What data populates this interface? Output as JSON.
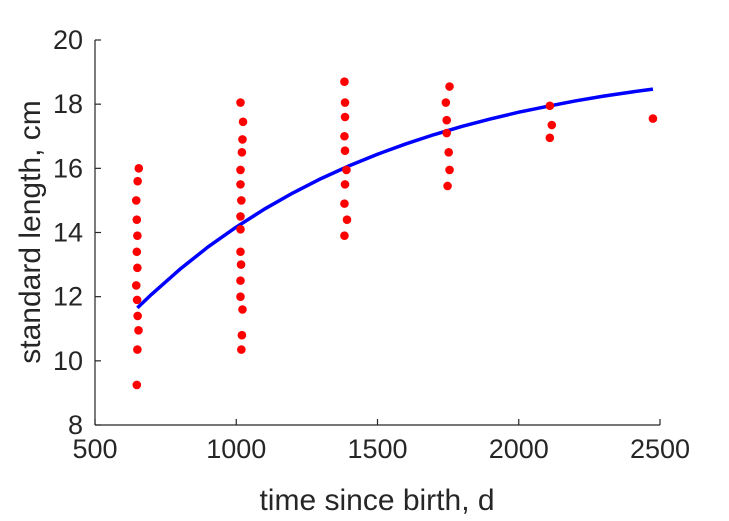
{
  "chart_data": {
    "type": "scatter",
    "title": "",
    "xlabel": "time since birth, d",
    "ylabel": "standard length, cm",
    "xlim": [
      500,
      2500
    ],
    "ylim": [
      8,
      20
    ],
    "xticks": [
      500,
      1000,
      1500,
      2000,
      2500
    ],
    "yticks": [
      8,
      10,
      12,
      14,
      16,
      18,
      20
    ],
    "grid": false,
    "legend": "none",
    "colors": {
      "points": "#ff0000",
      "curve": "#0000ff",
      "axes": "#262626"
    },
    "series": [
      {
        "kind": "scatter",
        "points": [
          [
            648,
            9.25
          ],
          [
            650,
            10.35
          ],
          [
            654,
            10.95
          ],
          [
            651,
            11.4
          ],
          [
            649,
            11.9
          ],
          [
            646,
            12.35
          ],
          [
            650,
            12.9
          ],
          [
            648,
            13.4
          ],
          [
            650,
            13.9
          ],
          [
            648,
            14.4
          ],
          [
            646,
            15.0
          ],
          [
            651,
            15.6
          ],
          [
            655,
            16.0
          ],
          [
            1018,
            10.35
          ],
          [
            1020,
            10.8
          ],
          [
            1022,
            11.6
          ],
          [
            1015,
            12.0
          ],
          [
            1015,
            12.5
          ],
          [
            1017,
            13.0
          ],
          [
            1015,
            13.4
          ],
          [
            1015,
            14.1
          ],
          [
            1015,
            14.5
          ],
          [
            1018,
            15.0
          ],
          [
            1015,
            15.5
          ],
          [
            1015,
            15.95
          ],
          [
            1020,
            16.5
          ],
          [
            1022,
            16.9
          ],
          [
            1024,
            17.45
          ],
          [
            1015,
            18.05
          ],
          [
            1383,
            13.9
          ],
          [
            1392,
            14.4
          ],
          [
            1383,
            14.9
          ],
          [
            1385,
            15.5
          ],
          [
            1390,
            15.95
          ],
          [
            1385,
            16.55
          ],
          [
            1383,
            17.0
          ],
          [
            1385,
            17.6
          ],
          [
            1385,
            18.05
          ],
          [
            1383,
            18.7
          ],
          [
            1748,
            15.45
          ],
          [
            1755,
            15.95
          ],
          [
            1752,
            16.5
          ],
          [
            1745,
            17.1
          ],
          [
            1745,
            17.5
          ],
          [
            1742,
            18.05
          ],
          [
            1755,
            18.55
          ],
          [
            2110,
            16.95
          ],
          [
            2117,
            17.35
          ],
          [
            2110,
            17.95
          ],
          [
            2475,
            17.55
          ]
        ]
      },
      {
        "kind": "line",
        "model": "von-bertalanffy",
        "x": [
          650,
          700,
          800,
          900,
          1000,
          1100,
          1200,
          1300,
          1400,
          1500,
          1600,
          1700,
          1800,
          1900,
          2000,
          2100,
          2200,
          2300,
          2400,
          2475
        ],
        "y": [
          11.65,
          12.07,
          12.85,
          13.55,
          14.17,
          14.73,
          15.23,
          15.68,
          16.08,
          16.44,
          16.76,
          17.05,
          17.31,
          17.54,
          17.75,
          17.93,
          18.1,
          18.25,
          18.38,
          18.47
        ]
      }
    ]
  }
}
